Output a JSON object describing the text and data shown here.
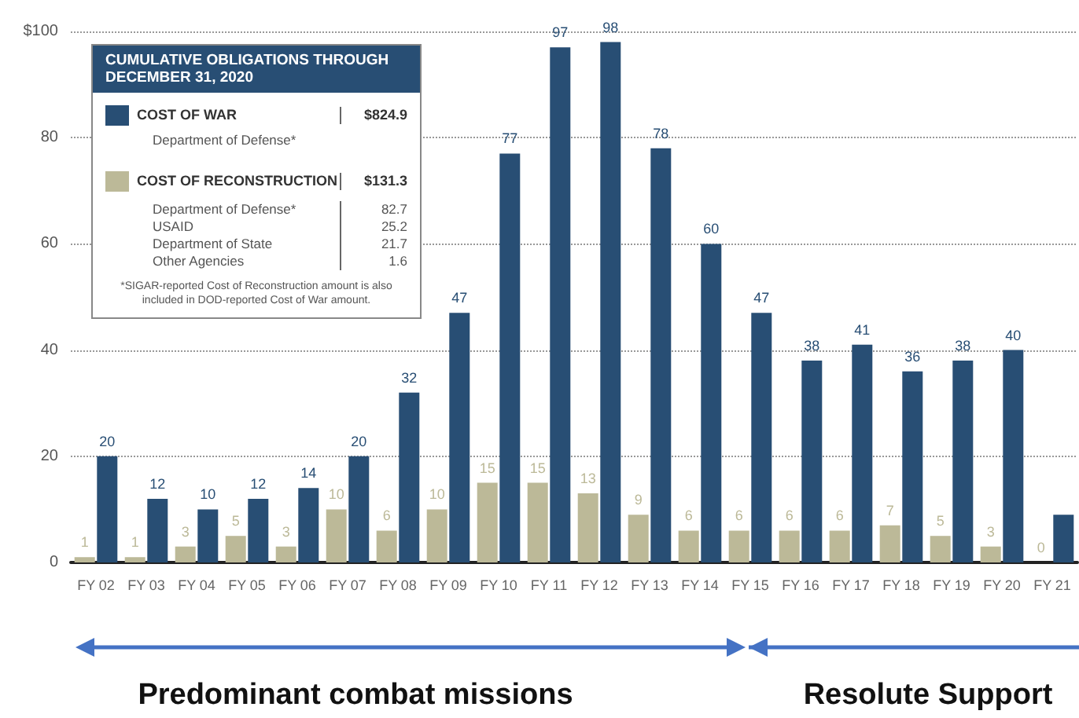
{
  "chart_data": {
    "type": "bar",
    "categories": [
      "FY 02",
      "FY 03",
      "FY 04",
      "FY 05",
      "FY 06",
      "FY 07",
      "FY 08",
      "FY 09",
      "FY 10",
      "FY 11",
      "FY 12",
      "FY 13",
      "FY 14",
      "FY 15",
      "FY 16",
      "FY 17",
      "FY 18",
      "FY 19",
      "FY 20",
      "FY 21"
    ],
    "series": [
      {
        "name": "COST OF WAR",
        "color": "#284e74",
        "values": [
          20,
          12,
          10,
          12,
          14,
          20,
          32,
          47,
          77,
          97,
          98,
          78,
          60,
          47,
          38,
          41,
          36,
          38,
          40,
          9
        ],
        "value_labels": [
          "20",
          "12",
          "10",
          "12",
          "14",
          "20",
          "32",
          "47",
          "77",
          "97",
          "98",
          "78",
          "60",
          "47",
          "38",
          "41",
          "36",
          "38",
          "40",
          null
        ]
      },
      {
        "name": "COST OF RECONSTRUCTION",
        "color": "#bcb998",
        "values": [
          1,
          1,
          3,
          5,
          3,
          10,
          6,
          10,
          15,
          15,
          13,
          9,
          6,
          6,
          6,
          6,
          7,
          5,
          3,
          0
        ],
        "value_labels": [
          "1",
          "1",
          "3",
          "5",
          "3",
          "10",
          "6",
          "10",
          "15",
          "15",
          "13",
          "9",
          "6",
          "6",
          "6",
          "6",
          "7",
          "5",
          "3",
          "0"
        ]
      }
    ],
    "ylim": [
      0,
      100
    ],
    "yticks": [
      0,
      20,
      40,
      60,
      80,
      {
        "value": 100,
        "label": "$100"
      }
    ],
    "grid": "y",
    "legend": "top left",
    "legend_title": "CUMULATIVE OBLIGATIONS THROUGH DECEMBER 31, 2020",
    "annotations": [
      "$824.9",
      "Department of Defense*",
      "$131.3",
      "Department of Defense*",
      "82.7",
      "USAID",
      "25.2",
      "Department of State",
      "21.7",
      "Other Agencies",
      "1.6",
      "*SIGAR-reported Cost of Reconstruction amount is also included in DOD-reported Cost of War amount.",
      "Predominant combat missions",
      "Resolute Support"
    ]
  }
}
